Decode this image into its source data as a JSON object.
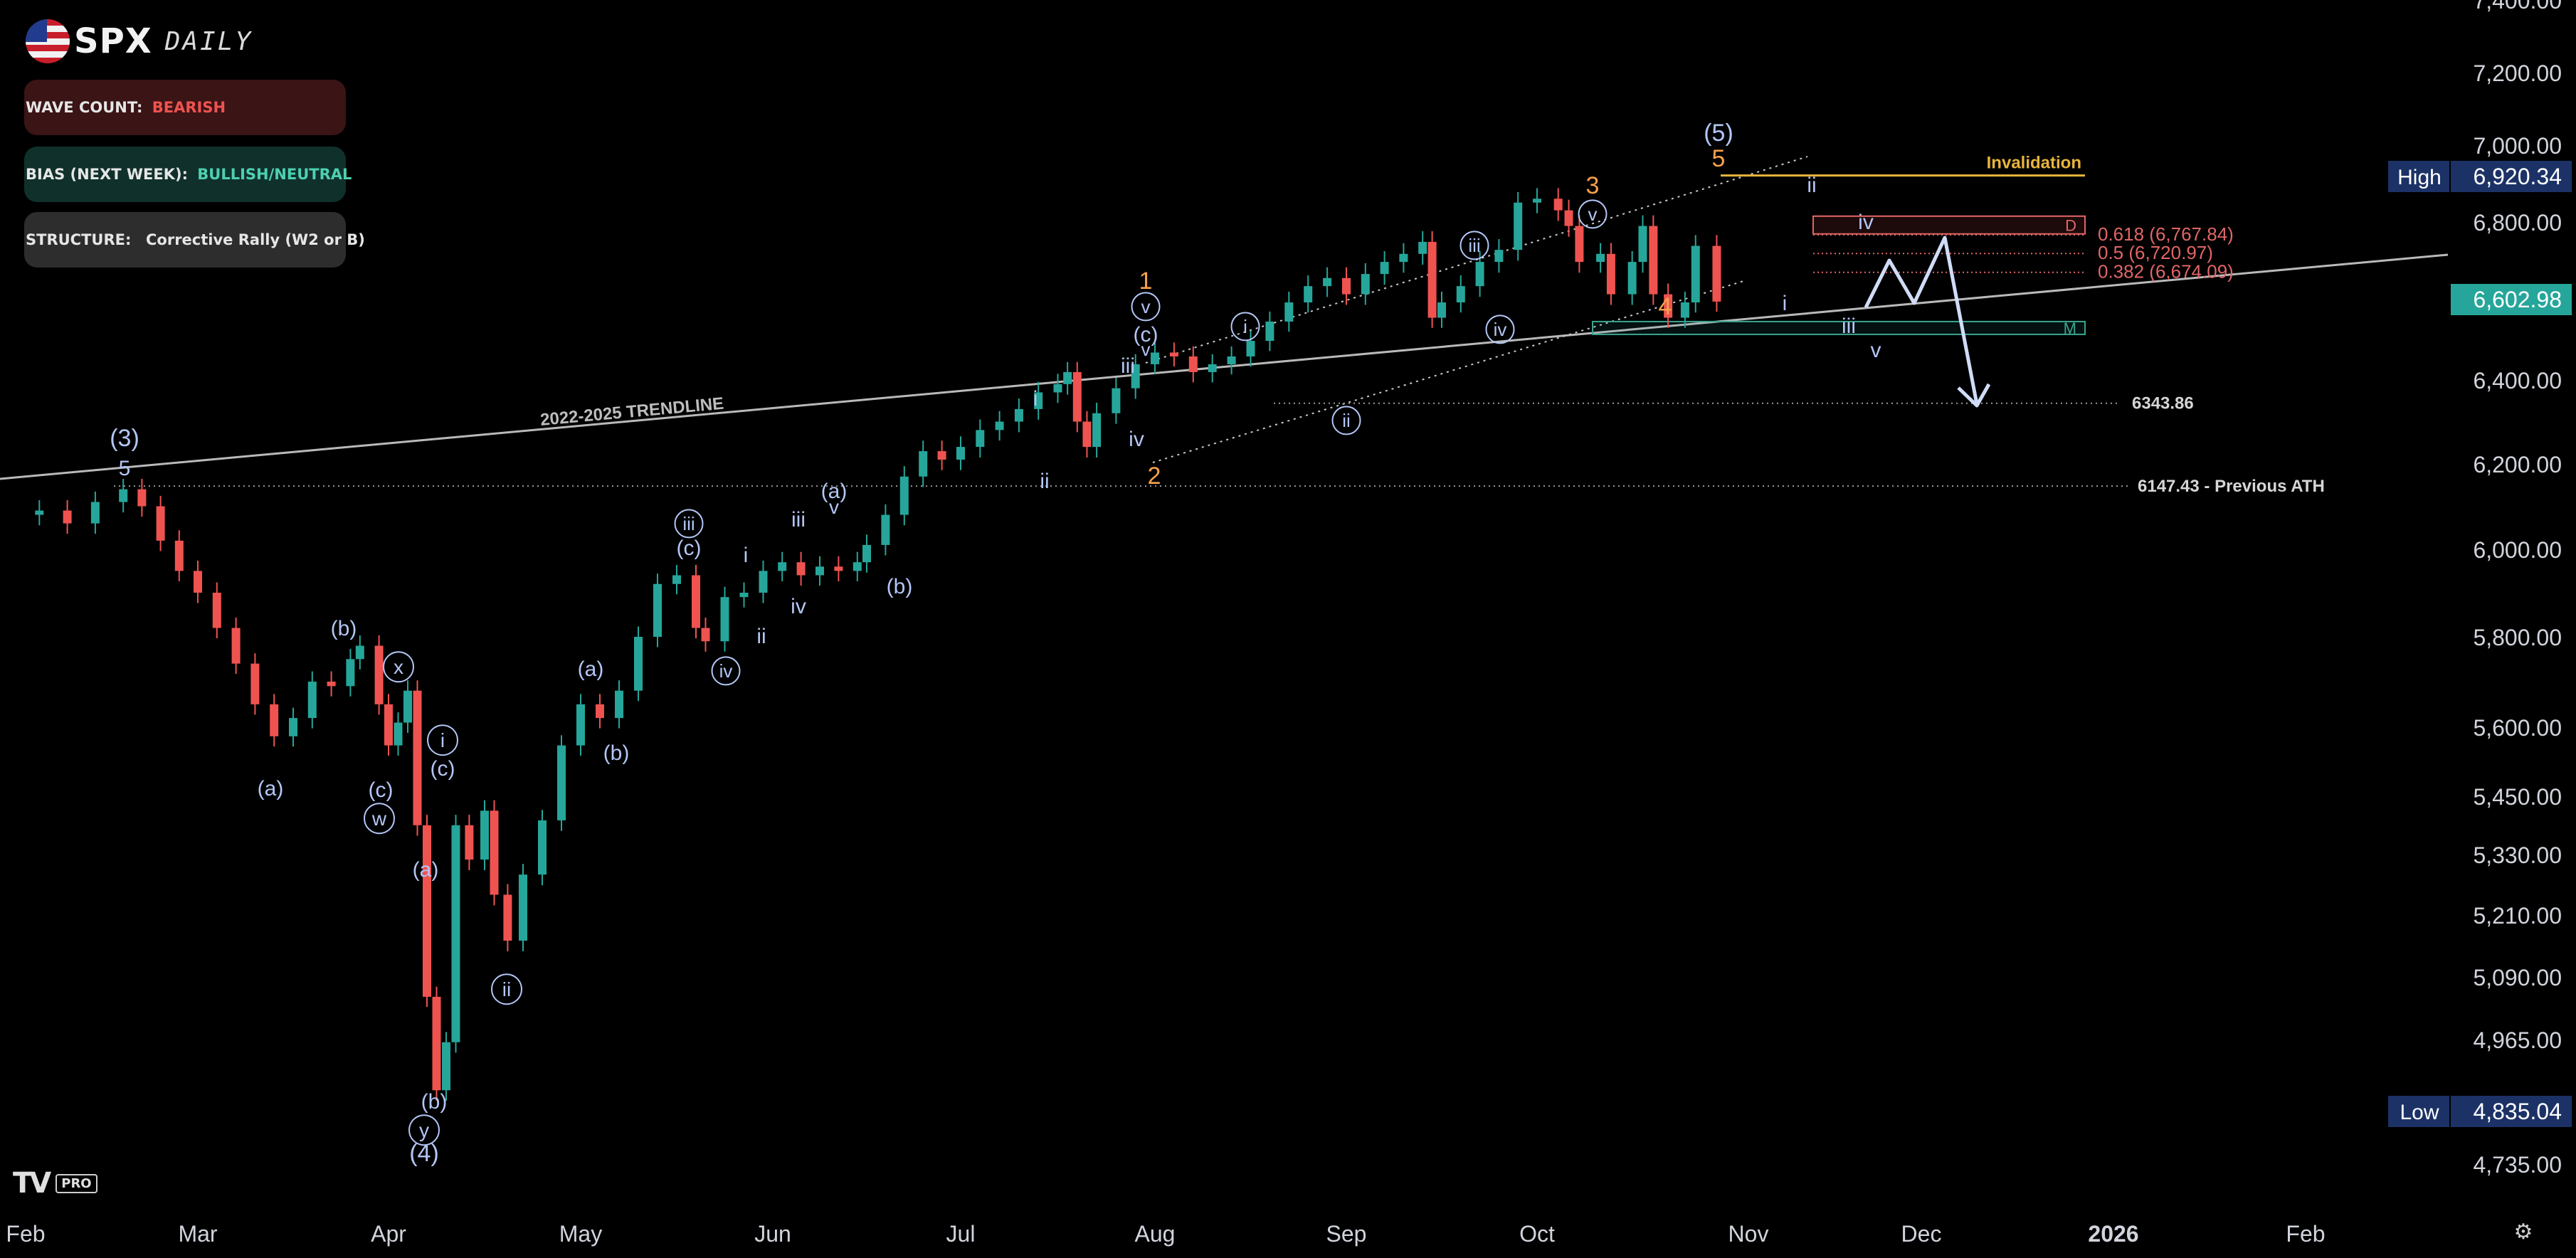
{
  "header": {
    "brand": "SPX",
    "subtitle": "DAILY",
    "flag_icon": "us-flag-icon"
  },
  "panels": [
    {
      "label": "WAVE COUNT: ",
      "value": "BEARISH",
      "value_color": "#ef5350",
      "bg": "#3b1416"
    },
    {
      "label": "BIAS (NEXT WEEK): ",
      "value": "BULLISH/NEUTRAL",
      "value_color": "#4dd0b1",
      "bg": "#10302b"
    },
    {
      "label": "STRUCTURE:  ",
      "value": "Corrective Rally (W2 or B)",
      "value_color": "#e6e6e6",
      "bg": "#2d2d2d"
    }
  ],
  "colors": {
    "up": "#26a69a",
    "down": "#ef5350",
    "wave_label": "#b3c6f5",
    "orange_label": "#f7a14b",
    "invalidation": "#e8b53c",
    "fib": "#e06666"
  },
  "chart_data": {
    "type": "candlestick",
    "title": "SPX DAILY",
    "x_axis": {
      "tick_labels": [
        "Feb",
        "Mar",
        "Apr",
        "May",
        "Jun",
        "Jul",
        "Aug",
        "Sep",
        "Oct",
        "Nov",
        "Dec",
        "2026",
        "Feb"
      ]
    },
    "y_axis": {
      "scale": "log",
      "tick_labels": [
        "7,400.00",
        "7,200.00",
        "7,000.00",
        "6,800.00",
        "6,600.00",
        "6,400.00",
        "6,200.00",
        "6,000.00",
        "5,800.00",
        "5,600.00",
        "5,450.00",
        "5,330.00",
        "5,210.00",
        "5,090.00",
        "4,965.00",
        "4,735.00"
      ],
      "tick_values": [
        7400,
        7200,
        7000,
        6800,
        6600,
        6400,
        6200,
        6000,
        5800,
        5600,
        5450,
        5330,
        5210,
        5090,
        4965,
        4735
      ]
    },
    "price_badges": [
      {
        "label": "High",
        "value": "6,920.34"
      },
      {
        "label": "",
        "value": "6,602.98"
      },
      {
        "label": "Low",
        "value": "4,835.04"
      }
    ],
    "levels": [
      {
        "value": 6920.34,
        "label": "Invalidation"
      },
      {
        "value": 6767.84,
        "label": "0.618 (6,767.84)"
      },
      {
        "value": 6720.97,
        "label": "0.5 (6,720.97)"
      },
      {
        "value": 6674.09,
        "label": "0.382 (6,674.09)"
      },
      {
        "value": 6343.86,
        "label": "6343.86"
      },
      {
        "value": 6147.43,
        "label": "6147.43 - Previous ATH"
      }
    ],
    "zones": [
      {
        "label": "D",
        "from": 6770,
        "to": 6815
      },
      {
        "label": "M",
        "from": 6525,
        "to": 6550
      }
    ],
    "trendline_label": "2022-2025 TRENDLINE",
    "month_index": {
      "Feb": 0,
      "Mar": 1,
      "Apr": 2,
      "May": 3,
      "Jun": 4,
      "Jul": 5,
      "Aug": 6,
      "Sep": 7,
      "Oct": 8,
      "Nov": 9,
      "Dec": 10
    },
    "candles_monthly_path": [
      [
        0.0,
        6080
      ],
      [
        0.15,
        6090
      ],
      [
        0.3,
        6060
      ],
      [
        0.45,
        6110
      ],
      [
        0.6,
        6140
      ],
      [
        0.7,
        6100
      ],
      [
        0.8,
        6020
      ],
      [
        0.9,
        5950
      ],
      [
        1.0,
        5900
      ],
      [
        1.1,
        5820
      ],
      [
        1.2,
        5740
      ],
      [
        1.3,
        5650
      ],
      [
        1.4,
        5580
      ],
      [
        1.5,
        5620
      ],
      [
        1.6,
        5700
      ],
      [
        1.7,
        5690
      ],
      [
        1.8,
        5750
      ],
      [
        1.85,
        5780
      ],
      [
        1.95,
        5650
      ],
      [
        2.0,
        5560
      ],
      [
        2.05,
        5610
      ],
      [
        2.1,
        5680
      ],
      [
        2.15,
        5390
      ],
      [
        2.2,
        5050
      ],
      [
        2.25,
        4870
      ],
      [
        2.3,
        4960
      ],
      [
        2.35,
        5390
      ],
      [
        2.42,
        5320
      ],
      [
        2.5,
        5420
      ],
      [
        2.55,
        5250
      ],
      [
        2.62,
        5160
      ],
      [
        2.7,
        5290
      ],
      [
        2.8,
        5400
      ],
      [
        2.9,
        5560
      ],
      [
        3.0,
        5650
      ],
      [
        3.1,
        5620
      ],
      [
        3.2,
        5680
      ],
      [
        3.3,
        5800
      ],
      [
        3.4,
        5920
      ],
      [
        3.5,
        5940
      ],
      [
        3.6,
        5820
      ],
      [
        3.65,
        5790
      ],
      [
        3.75,
        5890
      ],
      [
        3.85,
        5900
      ],
      [
        3.95,
        5950
      ],
      [
        4.05,
        5970
      ],
      [
        4.15,
        5940
      ],
      [
        4.25,
        5960
      ],
      [
        4.35,
        5950
      ],
      [
        4.45,
        5970
      ],
      [
        4.5,
        6010
      ],
      [
        4.6,
        6080
      ],
      [
        4.7,
        6170
      ],
      [
        4.8,
        6230
      ],
      [
        4.9,
        6210
      ],
      [
        5.0,
        6240
      ],
      [
        5.1,
        6280
      ],
      [
        5.2,
        6300
      ],
      [
        5.3,
        6330
      ],
      [
        5.4,
        6370
      ],
      [
        5.5,
        6390
      ],
      [
        5.55,
        6420
      ],
      [
        5.6,
        6300
      ],
      [
        5.65,
        6240
      ],
      [
        5.7,
        6320
      ],
      [
        5.8,
        6380
      ],
      [
        5.9,
        6440
      ],
      [
        6.0,
        6470
      ],
      [
        6.1,
        6460
      ],
      [
        6.2,
        6420
      ],
      [
        6.3,
        6440
      ],
      [
        6.4,
        6460
      ],
      [
        6.5,
        6500
      ],
      [
        6.6,
        6550
      ],
      [
        6.7,
        6600
      ],
      [
        6.8,
        6640
      ],
      [
        6.9,
        6660
      ],
      [
        7.0,
        6620
      ],
      [
        7.1,
        6670
      ],
      [
        7.2,
        6700
      ],
      [
        7.3,
        6720
      ],
      [
        7.4,
        6750
      ],
      [
        7.45,
        6560
      ],
      [
        7.5,
        6600
      ],
      [
        7.6,
        6640
      ],
      [
        7.7,
        6700
      ],
      [
        7.8,
        6730
      ],
      [
        7.9,
        6850
      ],
      [
        8.0,
        6860
      ],
      [
        8.1,
        6830
      ],
      [
        8.15,
        6790
      ],
      [
        8.2,
        6700
      ],
      [
        8.3,
        6720
      ],
      [
        8.35,
        6620
      ],
      [
        8.45,
        6700
      ],
      [
        8.5,
        6790
      ],
      [
        8.55,
        6620
      ],
      [
        8.62,
        6560
      ],
      [
        8.7,
        6600
      ],
      [
        8.75,
        6740
      ],
      [
        8.85,
        6602
      ]
    ]
  }
}
